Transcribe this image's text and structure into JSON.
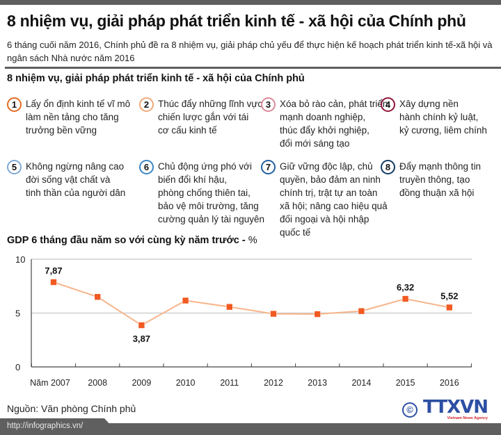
{
  "header": {
    "title": "8 nhiệm vụ, giải pháp phát triển kinh tế - xã hội của Chính phủ",
    "subtitle": "6 tháng cuối năm 2016, Chính phủ đề ra 8 nhiệm vụ, giải pháp chủ yếu để thực hiện kế hoạch phát triển kinh tế-xã hội và ngân sách Nhà nước năm 2016"
  },
  "tasks_section": {
    "title": "8 nhiệm vụ, giải pháp phát triển kinh tế - xã hội của Chính phủ",
    "items": [
      {
        "number": "1",
        "color": "#e56a1f",
        "lines": [
          "Lấy ổn định kinh tế vĩ mô",
          "làm nền tảng cho tăng",
          "trưởng bền vững"
        ]
      },
      {
        "number": "2",
        "color": "#f2a97a",
        "lines": [
          "Thúc đẩy những lĩnh vực",
          "chiến lược gắn với tái",
          "cơ cấu kinh tế"
        ]
      },
      {
        "number": "3",
        "color": "#d98a9a",
        "lines": [
          "Xóa bỏ rào cản, phát triển",
          "mạnh doanh nghiệp,",
          "thúc đẩy khởi nghiệp,",
          "đổi mới sáng tạo"
        ]
      },
      {
        "number": "4",
        "color": "#8e1438",
        "lines": [
          "Xây dựng nền",
          "hành chính kỷ luật,",
          "kỷ cương, liêm chính"
        ]
      },
      {
        "number": "5",
        "color": "#7fa9d8",
        "lines": [
          "Không ngừng nâng cao",
          "đời sống vật chất và",
          "tinh thần của người dân"
        ]
      },
      {
        "number": "6",
        "color": "#3b86c6",
        "lines": [
          "Chủ động ứng phó với",
          "biến đổi khí hậu,",
          "phòng chống thiên tai,",
          "bảo vệ môi trường, tăng",
          "cường quản lý tài nguyên"
        ]
      },
      {
        "number": "7",
        "color": "#1f5f9e",
        "lines": [
          "Giữ vững độc lập, chủ",
          "quyền, bảo đảm an ninh",
          "chính trị, trật tự an toàn",
          "xã hội; nâng cao hiệu quả",
          "đối ngoại và hội nhập",
          "quốc tế"
        ]
      },
      {
        "number": "8",
        "color": "#123a63",
        "lines": [
          "Đẩy mạnh thông tin",
          "truyền thông, tạo",
          "đồng thuận xã hội"
        ]
      }
    ]
  },
  "chart": {
    "title_bold": "GDP 6 tháng đầu năm so với cùng kỳ năm trước - ",
    "title_unit": "%"
  },
  "chart_data": {
    "type": "line",
    "title": "GDP 6 tháng đầu năm so với cùng kỳ năm trước - %",
    "xlabel": "",
    "ylabel": "%",
    "categories": [
      "Năm 2007",
      "2008",
      "2009",
      "2010",
      "2011",
      "2012",
      "2013",
      "2014",
      "2015",
      "2016"
    ],
    "series": [
      {
        "name": "GDP 6 tháng đầu năm (%)",
        "color": "#f15a22",
        "line_color": "#f7b48a",
        "values": [
          7.87,
          6.5,
          3.87,
          6.16,
          5.57,
          4.93,
          4.9,
          5.18,
          6.32,
          5.52
        ]
      }
    ],
    "data_labels": [
      {
        "index": 0,
        "text": "7,87",
        "position": "above"
      },
      {
        "index": 2,
        "text": "3,87",
        "position": "below"
      },
      {
        "index": 8,
        "text": "6,32",
        "position": "above"
      },
      {
        "index": 9,
        "text": "5,52",
        "position": "above"
      }
    ],
    "yticks": [
      "0",
      "5",
      "10"
    ],
    "ylim": [
      0,
      10
    ],
    "grid": true,
    "legend": "none"
  },
  "footer": {
    "source": "Nguồn: Văn phòng Chính phủ",
    "url": "http://infographics.vn/",
    "logo_copyright": "©",
    "logo_text": "TTXVN",
    "logo_tagline": "Vietnam News Agency"
  },
  "colors": {
    "accent_orange": "#f15a22",
    "line_orange": "#f7b48a",
    "bar_gray": "#5f5f5f",
    "logo_blue": "#2d4fa3",
    "logo_red": "#d2232a"
  }
}
